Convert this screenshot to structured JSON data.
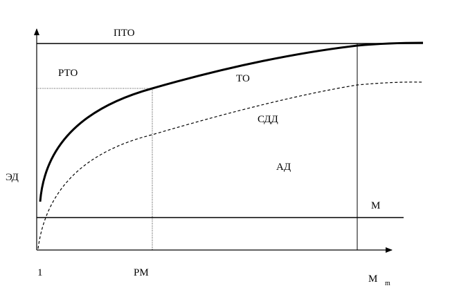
{
  "axes": {
    "y_label": "ЭД",
    "x_origin": "1",
    "x_mark": "РМ",
    "x_end": "М",
    "x_end_subscript": "m"
  },
  "regions": {
    "top_line": "ПТО",
    "upper_left": "РТО",
    "thick_curve": "ТО",
    "dashed_curve": "СДД",
    "lower_area": "АД",
    "bottom_line": "М"
  }
}
